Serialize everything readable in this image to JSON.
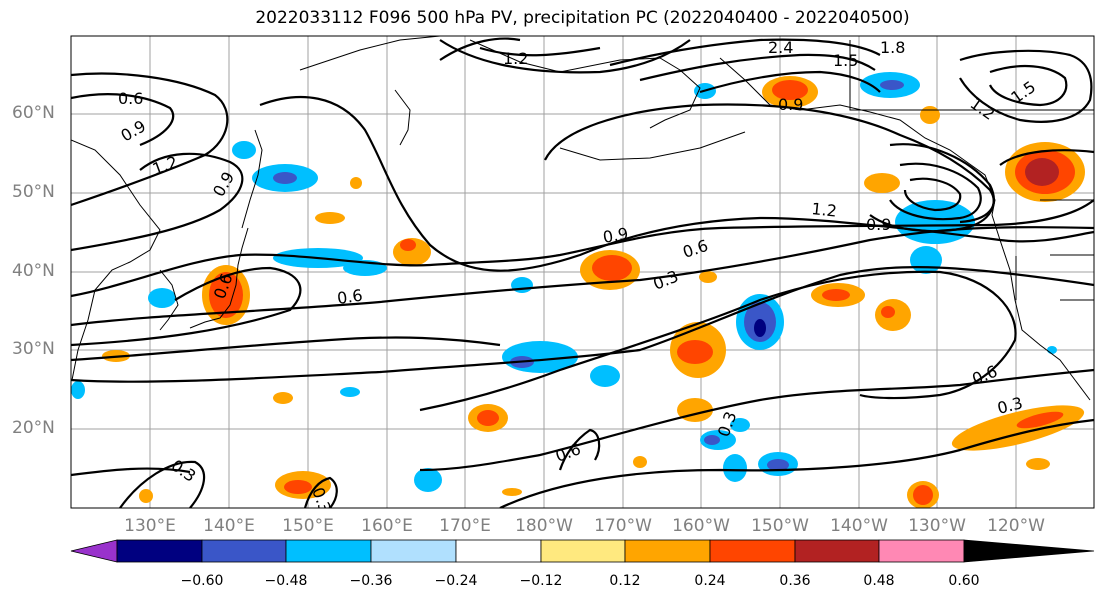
{
  "title": "2022033112 F096 500 hPa PV, precipitation PC (2022040400 - 2022040500)",
  "lat_labels": [
    "60°N",
    "50°N",
    "40°N",
    "30°N",
    "20°N"
  ],
  "lon_labels": [
    "130°E",
    "140°E",
    "150°E",
    "160°E",
    "170°E",
    "180°W",
    "170°W",
    "160°W",
    "150°W",
    "140°W",
    "130°W",
    "120°W"
  ],
  "colorbar": {
    "ticks": [
      "−0.60",
      "−0.48",
      "−0.36",
      "−0.24",
      "−0.12",
      "0.12",
      "0.24",
      "0.36",
      "0.48",
      "0.60"
    ],
    "colors": [
      "#9932cc",
      "#000080",
      "#3a56c8",
      "#00bfff",
      "#b0e0fe",
      "#ffffff",
      "#ffe97f",
      "#ffa500",
      "#ff4500",
      "#b22222",
      "#ff88b4"
    ]
  },
  "pv_contour_labels": [
    "1.2",
    "2.4",
    "1.5",
    "1.8",
    "0.6",
    "0.9",
    "1.2",
    "0.9",
    "0.9",
    "0.6",
    "0.3",
    "0.6",
    "1.2",
    "0.9",
    "1.2",
    "1.5",
    "0.6",
    "0.3",
    "0.6",
    "0.3",
    "0.3",
    "0.3",
    "0.6"
  ]
}
